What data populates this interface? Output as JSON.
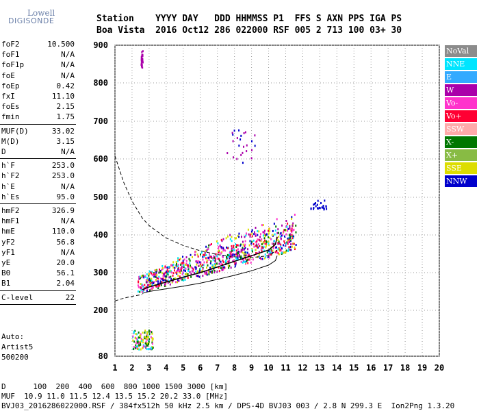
{
  "logo": {
    "line1": "Lowell",
    "line2": "DIGISONDE"
  },
  "header": {
    "row1": "Station    YYYY DAY   DDD HHMMSS P1  FFS S AXN PPS IGA PS",
    "row2": "Boa Vista  2016 Oct12 286 022000 RSF 005 2 713 100 03+ 30"
  },
  "params": {
    "g1": [
      {
        "label": "foF2",
        "value": "10.500"
      },
      {
        "label": "foF1",
        "value": "N/A"
      },
      {
        "label": "foF1p",
        "value": "N/A"
      },
      {
        "label": "foE",
        "value": "N/A"
      },
      {
        "label": "foEp",
        "value": "0.42"
      },
      {
        "label": "fxI",
        "value": "11.10"
      },
      {
        "label": "foEs",
        "value": "2.15"
      },
      {
        "label": "fmin",
        "value": "1.75"
      }
    ],
    "g2": [
      {
        "label": "MUF(D)",
        "value": "33.02"
      },
      {
        "label": "M(D)",
        "value": "3.15"
      },
      {
        "label": "D",
        "value": "N/A"
      }
    ],
    "g3": [
      {
        "label": "h`F",
        "value": "253.0"
      },
      {
        "label": "h`F2",
        "value": "253.0"
      },
      {
        "label": "h`E",
        "value": "N/A"
      },
      {
        "label": "h`Es",
        "value": "95.0"
      }
    ],
    "g4": [
      {
        "label": "hmF2",
        "value": "326.9"
      },
      {
        "label": "hmF1",
        "value": "N/A"
      },
      {
        "label": "hmE",
        "value": "110.0"
      },
      {
        "label": "yF2",
        "value": "56.8"
      },
      {
        "label": "yF1",
        "value": "N/A"
      },
      {
        "label": "yE",
        "value": "20.0"
      },
      {
        "label": "B0",
        "value": "56.1"
      },
      {
        "label": "B1",
        "value": "2.04"
      }
    ],
    "g5": [
      {
        "label": "C-level",
        "value": "22"
      }
    ]
  },
  "auto": {
    "line1": "Auto:",
    "line2": "Artist5",
    "line3": "500200"
  },
  "footer": {
    "row1": "D      100  200  400  600  800 1000 1500 3000 [km]",
    "row2": "MUF  10.9 11.0 11.5 12.4 13.5 15.2 20.2 33.0 [MHz]",
    "row3": "BVJ03_2016286022000.RSF / 384fx512h 50 kHz 2.5 km / DPS-4D BVJ03 003 / 2.8 N 299.3 E  Ion2Png 1.3.20"
  },
  "chart_data": {
    "type": "scatter",
    "title": "",
    "xlabel": "",
    "ylabel": "",
    "xlim": [
      1,
      20
    ],
    "ylim": [
      80,
      900
    ],
    "x_ticks": [
      "1",
      "2",
      "3",
      "4",
      "5",
      "6",
      "7",
      "8",
      "9",
      "10",
      "11",
      "12",
      "13",
      "14",
      "15",
      "16",
      "17",
      "18",
      "19",
      "20"
    ],
    "y_ticks": [
      "80",
      "200",
      "300",
      "400",
      "500",
      "600",
      "700",
      "800",
      "900"
    ],
    "y_tick_values": [
      80,
      200,
      300,
      400,
      500,
      600,
      700,
      800,
      900
    ],
    "grid": true,
    "legend_position": "right",
    "legend": [
      {
        "name": "NoVal",
        "color": "#8c8c8c"
      },
      {
        "name": "NNE",
        "color": "#00e5ff"
      },
      {
        "name": "E",
        "color": "#33aaff"
      },
      {
        "name": "W",
        "color": "#aa00aa"
      },
      {
        "name": "Vo-",
        "color": "#ff33cc"
      },
      {
        "name": "Vo+",
        "color": "#ff0033"
      },
      {
        "name": "SSW",
        "color": "#ffaaaa"
      },
      {
        "name": "X-",
        "color": "#007700"
      },
      {
        "name": "X+",
        "color": "#88bb44"
      },
      {
        "name": "SSE",
        "color": "#dddd00"
      },
      {
        "name": "NNW",
        "color": "#0000cc"
      }
    ],
    "traces": {
      "f2_trace": [
        [
          2.6,
          255
        ],
        [
          3.0,
          262
        ],
        [
          4.0,
          275
        ],
        [
          5.0,
          288
        ],
        [
          6.0,
          300
        ],
        [
          7.0,
          315
        ],
        [
          8.0,
          330
        ],
        [
          9.0,
          345
        ],
        [
          10.0,
          360
        ],
        [
          10.4,
          375
        ],
        [
          10.5,
          395
        ]
      ],
      "lower_profile": [
        [
          2.6,
          245
        ],
        [
          3.0,
          250
        ],
        [
          4.0,
          257
        ],
        [
          5.0,
          264
        ],
        [
          6.0,
          272
        ],
        [
          7.0,
          282
        ],
        [
          8.0,
          293
        ],
        [
          9.0,
          305
        ],
        [
          10.0,
          320
        ],
        [
          10.4,
          332
        ],
        [
          10.5,
          345
        ]
      ],
      "dashed_profile": [
        [
          1.0,
          608
        ],
        [
          1.5,
          540
        ],
        [
          2.0,
          490
        ],
        [
          2.6,
          445
        ],
        [
          3.0,
          425
        ],
        [
          4.0,
          392
        ],
        [
          5.0,
          372
        ],
        [
          6.0,
          358
        ],
        [
          7.0,
          348
        ],
        [
          8.0,
          342
        ],
        [
          9.0,
          340
        ],
        [
          10.0,
          345
        ],
        [
          10.5,
          360
        ]
      ],
      "bottom_curve": [
        [
          1.0,
          225
        ],
        [
          1.5,
          232
        ],
        [
          2.0,
          237
        ],
        [
          2.6,
          242
        ]
      ]
    },
    "clusters": [
      {
        "name": "F2 echoes",
        "x_range": [
          2.3,
          11.6
        ],
        "y_range": [
          250,
          460
        ],
        "colors": [
          "#ff33cc",
          "#00e5ff",
          "#aa00aa",
          "#0000cc",
          "#007700",
          "#dddd00",
          "#ff0033"
        ]
      },
      {
        "name": "second hop",
        "x_range": [
          7.5,
          9.2
        ],
        "y_range": [
          590,
          680
        ],
        "colors": [
          "#0000cc",
          "#aa00aa"
        ]
      },
      {
        "name": "NNW cluster",
        "x_range": [
          12.4,
          13.4
        ],
        "y_range": [
          470,
          495
        ],
        "colors": [
          "#0000cc"
        ]
      },
      {
        "name": "Es echoes",
        "x_range": [
          2.0,
          3.2
        ],
        "y_range": [
          100,
          150
        ],
        "colors": [
          "#007700",
          "#00e5ff",
          "#ff33cc",
          "#dddd00"
        ]
      },
      {
        "name": "high echoes",
        "x_range": [
          2.5,
          2.6
        ],
        "y_range": [
          840,
          890
        ],
        "colors": [
          "#aa00aa"
        ]
      }
    ]
  }
}
